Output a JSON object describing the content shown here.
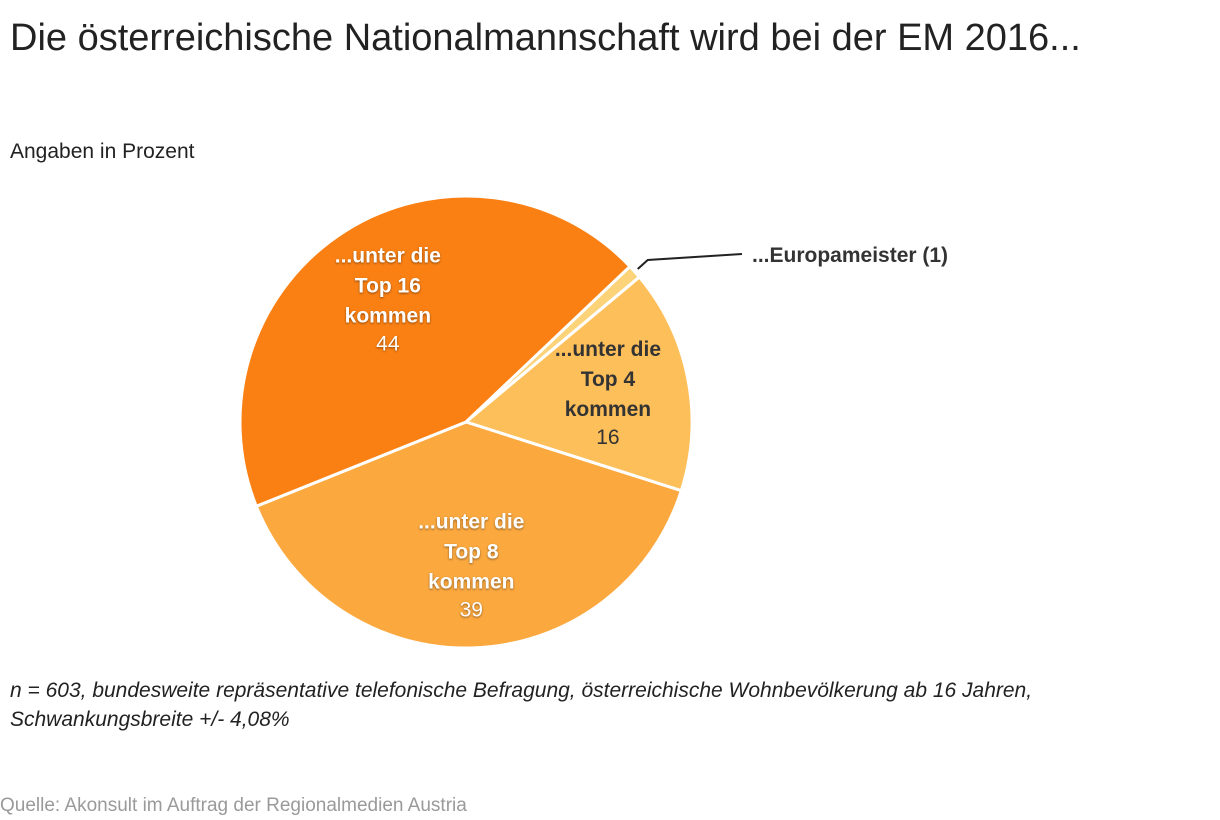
{
  "title": "Die österreichische Nationalmannschaft wird bei der EM 2016...",
  "subtitle": "Angaben in Prozent",
  "note": "n = 603, bundesweite repräsentative telefonische Befragung, österreichische Wohnbevölkerung ab 16 Jahren, Schwankungsbreite +/- 4,08%",
  "source": "Quelle: Akonsult im Auftrag der Regionalmedien Austria",
  "chart_data": {
    "type": "pie",
    "title": "Die österreichische Nationalmannschaft wird bei der EM 2016...",
    "subtitle": "Angaben in Prozent",
    "slices": [
      {
        "label": "...Europameister",
        "value": 1,
        "color": "#fdd37a",
        "label_lines": [
          "...Europameister (1)"
        ],
        "value_text": "",
        "outside": true
      },
      {
        "label": "...unter die Top 4 kommen",
        "value": 16,
        "color": "#fdbf5a",
        "label_lines": [
          "...unter die",
          "Top 4",
          "kommen"
        ],
        "value_text": "16",
        "outside": false,
        "dark_text": true
      },
      {
        "label": "...unter die Top 8 kommen",
        "value": 39,
        "color": "#fba83f",
        "label_lines": [
          "...unter die",
          "Top 8",
          "kommen"
        ],
        "value_text": "39",
        "outside": false,
        "dark_text": false
      },
      {
        "label": "...unter die Top 16 kommen",
        "value": 44,
        "color": "#fa8013",
        "label_lines": [
          "...unter die",
          "Top 16",
          "kommen"
        ],
        "value_text": "44",
        "outside": false,
        "dark_text": false
      }
    ]
  }
}
